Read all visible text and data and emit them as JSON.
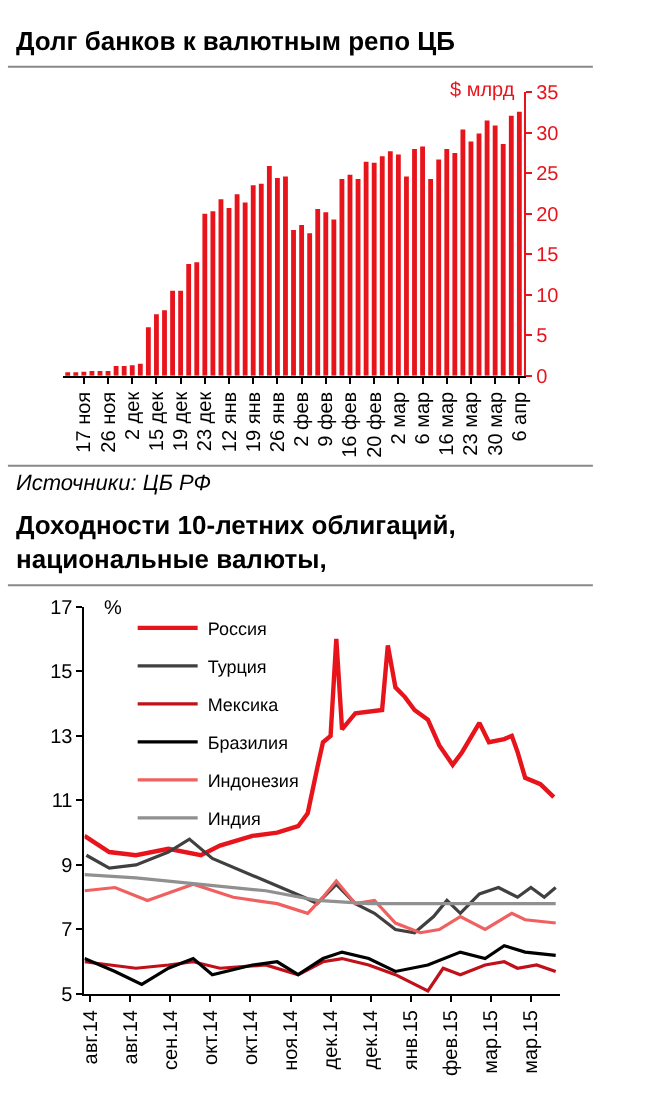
{
  "chart_data": [
    {
      "type": "bar",
      "title": "Долг банков к валютным репо ЦБ",
      "ylabel": "$ млрд",
      "categories": [
        null,
        null,
        "17 ноя",
        null,
        null,
        "26 ноя",
        null,
        null,
        "2 дек",
        null,
        null,
        "15 дек",
        null,
        null,
        "19 дек",
        null,
        null,
        "23 дек",
        null,
        null,
        "12 янв",
        null,
        null,
        "19 янв",
        null,
        null,
        "26 янв",
        null,
        null,
        "2 фев",
        null,
        null,
        "9 фев",
        null,
        null,
        "16 фев",
        null,
        null,
        "20 фев",
        null,
        null,
        "2 мар",
        null,
        null,
        "6 мар",
        null,
        null,
        "16 мар",
        null,
        null,
        "23 мар",
        null,
        null,
        "30 мар",
        null,
        null,
        "6 апр"
      ],
      "values": [
        0.3,
        0.3,
        0.5,
        0.6,
        0.6,
        0.6,
        1.2,
        1.2,
        1.3,
        1.5,
        6,
        7.6,
        8.1,
        10.5,
        10.5,
        13.8,
        14,
        20,
        20.3,
        21.8,
        20.7,
        22.4,
        21.4,
        23.5,
        23.7,
        25.9,
        24.4,
        24.6,
        18,
        18.6,
        17.6,
        20.6,
        20.2,
        19.3,
        24.3,
        24.8,
        24.3,
        26.4,
        26.3,
        27.1,
        27.7,
        27.3,
        24.6,
        28,
        28.3,
        24.3,
        26.7,
        28,
        27.5,
        30.4,
        28.9,
        29.9,
        31.5,
        30.9,
        28.6,
        32.1,
        32.6
      ],
      "color": "#e8141c",
      "ylim": [
        0,
        35
      ],
      "yticks": [
        0,
        5,
        10,
        15,
        20,
        25,
        30,
        35
      ],
      "grid": false,
      "annotations": [
        "Источники: ЦБ РФ"
      ]
    },
    {
      "type": "line",
      "title": "Доходности 10-летних облигаций, национальные валюты,",
      "ylabel": "%",
      "xlim": [
        "2014-08-01",
        "2015-04-07"
      ],
      "xticks": [
        {
          "value": "2014-08-04",
          "label": "авг.14"
        },
        {
          "value": "2014-08-25",
          "label": "авг.14"
        },
        {
          "value": "2014-09-15",
          "label": "сен.14"
        },
        {
          "value": "2014-10-06",
          "label": "окт.14"
        },
        {
          "value": "2014-10-27",
          "label": "окт.14"
        },
        {
          "value": "2014-11-17",
          "label": "ноя.14"
        },
        {
          "value": "2014-12-08",
          "label": "дек.14"
        },
        {
          "value": "2014-12-29",
          "label": "дек.14"
        },
        {
          "value": "2015-01-19",
          "label": "янв.15"
        },
        {
          "value": "2015-02-09",
          "label": "фев.15"
        },
        {
          "value": "2015-03-02",
          "label": "мар.15"
        },
        {
          "value": "2015-03-23",
          "label": "мар.15"
        }
      ],
      "ylim": [
        5,
        17
      ],
      "yticks": [
        5,
        7,
        9,
        11,
        13,
        15,
        17
      ],
      "grid": false,
      "legend": "top left",
      "marker": "none",
      "line_style": "solid",
      "series": [
        {
          "name": "Россия",
          "color": "#e8141c",
          "x": [
            "2014-08-01",
            "2014-08-14",
            "2014-08-28",
            "2014-09-14",
            "2014-10-01",
            "2014-10-11",
            "2014-10-28",
            "2014-11-10",
            "2014-11-21",
            "2014-11-26",
            "2014-12-01",
            "2014-12-04",
            "2014-12-08",
            "2014-12-11",
            "2014-12-14",
            "2014-12-21",
            "2015-01-04",
            "2015-01-07",
            "2015-01-11",
            "2015-01-16",
            "2015-01-21",
            "2015-01-28",
            "2015-02-03",
            "2015-02-10",
            "2015-02-15",
            "2015-02-24",
            "2015-03-01",
            "2015-03-09",
            "2015-03-13",
            "2015-03-16",
            "2015-03-20",
            "2015-03-28",
            "2015-04-04"
          ],
          "values": [
            9.9,
            9.4,
            9.3,
            9.5,
            9.3,
            9.6,
            9.9,
            10.0,
            10.2,
            10.6,
            12.0,
            12.8,
            13.0,
            16.0,
            13.2,
            13.7,
            13.8,
            15.8,
            14.5,
            14.2,
            13.8,
            13.5,
            12.7,
            12.1,
            12.5,
            13.4,
            12.8,
            12.9,
            13.0,
            12.5,
            11.7,
            11.5,
            11.1
          ]
        },
        {
          "name": "Турция",
          "color": "#404040",
          "x": [
            "2014-08-02",
            "2014-08-14",
            "2014-08-28",
            "2014-09-14",
            "2014-09-25",
            "2014-10-07",
            "2014-11-04",
            "2014-11-24",
            "2014-12-01",
            "2014-12-11",
            "2014-12-21",
            "2014-12-31",
            "2015-01-11",
            "2015-01-21",
            "2015-01-31",
            "2015-02-07",
            "2015-02-14",
            "2015-02-24",
            "2015-03-06",
            "2015-03-16",
            "2015-03-23",
            "2015-03-30",
            "2015-04-05"
          ],
          "values": [
            9.3,
            8.9,
            9.0,
            9.4,
            9.8,
            9.2,
            8.5,
            8.0,
            7.8,
            8.4,
            7.8,
            7.5,
            7.0,
            6.9,
            7.4,
            7.9,
            7.5,
            8.1,
            8.3,
            8.0,
            8.3,
            8.0,
            8.3
          ]
        },
        {
          "name": "Мексика",
          "color": "#c0101a",
          "x": [
            "2014-08-01",
            "2014-08-28",
            "2014-09-14",
            "2014-09-27",
            "2014-10-11",
            "2014-11-04",
            "2014-11-21",
            "2014-12-04",
            "2014-12-14",
            "2014-12-28",
            "2015-01-11",
            "2015-01-28",
            "2015-02-05",
            "2015-02-14",
            "2015-02-27",
            "2015-03-09",
            "2015-03-16",
            "2015-03-26",
            "2015-04-05"
          ],
          "values": [
            6.0,
            5.8,
            5.9,
            6.0,
            5.8,
            5.9,
            5.6,
            6.0,
            6.1,
            5.9,
            5.6,
            5.1,
            5.8,
            5.6,
            5.9,
            6.0,
            5.8,
            5.9,
            5.7
          ]
        },
        {
          "name": "Бразилия",
          "color": "#000000",
          "x": [
            "2014-08-01",
            "2014-08-17",
            "2014-08-31",
            "2014-09-14",
            "2014-09-27",
            "2014-10-07",
            "2014-10-28",
            "2014-11-10",
            "2014-11-21",
            "2014-12-04",
            "2014-12-14",
            "2014-12-28",
            "2015-01-11",
            "2015-01-28",
            "2015-02-14",
            "2015-02-27",
            "2015-03-09",
            "2015-03-20",
            "2015-04-05"
          ],
          "values": [
            6.1,
            5.7,
            5.3,
            5.8,
            6.1,
            5.6,
            5.9,
            6.0,
            5.6,
            6.1,
            6.3,
            6.1,
            5.7,
            5.9,
            6.3,
            6.1,
            6.5,
            6.3,
            6.2
          ]
        },
        {
          "name": "Индонезия",
          "color": "#f06060",
          "x": [
            "2014-08-01",
            "2014-08-17",
            "2014-09-03",
            "2014-09-27",
            "2014-10-18",
            "2014-11-10",
            "2014-11-26",
            "2014-12-04",
            "2014-12-11",
            "2014-12-21",
            "2014-12-31",
            "2015-01-11",
            "2015-01-24",
            "2015-02-03",
            "2015-02-14",
            "2015-02-27",
            "2015-03-13",
            "2015-03-20",
            "2015-04-05"
          ],
          "values": [
            8.2,
            8.3,
            7.9,
            8.4,
            8.0,
            7.8,
            7.5,
            8.0,
            8.5,
            7.8,
            7.9,
            7.2,
            6.9,
            7.0,
            7.4,
            7.0,
            7.5,
            7.3,
            7.2
          ]
        },
        {
          "name": "Индия",
          "color": "#909090",
          "x": [
            "2014-08-01",
            "2014-08-28",
            "2014-10-01",
            "2014-11-04",
            "2014-12-01",
            "2014-12-28",
            "2015-02-14",
            "2015-04-05"
          ],
          "values": [
            8.7,
            8.6,
            8.4,
            8.2,
            7.9,
            7.8,
            7.8,
            7.8
          ]
        }
      ]
    }
  ]
}
